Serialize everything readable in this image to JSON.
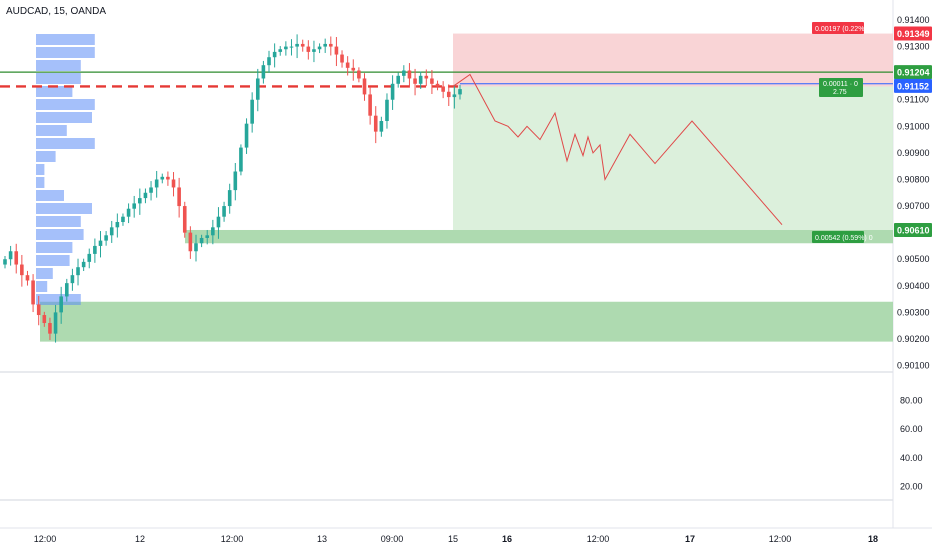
{
  "symbol_title": "AUDCAD, 15, OANDA",
  "colors": {
    "up": "#26a69a",
    "down": "#ef5350",
    "volume_profile": "#5b8cf5",
    "stop_zone": "#f7c9cc",
    "target_zone": "#d3ecd3",
    "support_zone": "#a5d6a7",
    "projection": "#e04848",
    "horizontal_line": "#2e8b2e",
    "stop_badge": "#f23645",
    "target_badge": "#2e9e41",
    "current_price_badge": "#2962ff"
  },
  "chart_data": [
    {
      "type": "candlestick",
      "title": "AUDCAD, 15, OANDA",
      "ylim": [
        0.901,
        0.914
      ],
      "y_tick_labels": [
        "0.91400",
        "0.91300",
        "0.91100",
        "0.91000",
        "0.90900",
        "0.90800",
        "0.90700",
        "0.90500",
        "0.90400",
        "0.90300",
        "0.90200",
        "0.90100"
      ],
      "x_tick_labels": [
        "12:00",
        "12",
        "12:00",
        "13",
        "09:00",
        "15",
        "16",
        "12:00",
        "17",
        "12:00",
        "18"
      ],
      "price_badges": [
        {
          "label": "0.91349",
          "value": 0.91349,
          "role": "stop"
        },
        {
          "label": "0.91204",
          "value": 0.91204,
          "role": "horizontal-line"
        },
        {
          "label": "0.91152",
          "value": 0.91152,
          "role": "current"
        },
        {
          "label": "0.90610",
          "value": 0.9061,
          "role": "target"
        }
      ],
      "position_labels": {
        "stop": "0.00197 (0.22%) 0",
        "entry": "0.00011 · 0",
        "ratio": "2.75",
        "target": "0.00542 (0.59%) 0"
      },
      "entry_price": 0.9115,
      "zones": [
        {
          "name": "stop",
          "from": 0.9115,
          "to": 0.91349
        },
        {
          "name": "target",
          "from": 0.9061,
          "to": 0.9115
        },
        {
          "name": "support-1",
          "from": 0.9056,
          "to": 0.9061
        },
        {
          "name": "support-2",
          "from": 0.9019,
          "to": 0.9034
        }
      ],
      "horizontal_line": 0.91204,
      "close_path": [
        0.905,
        0.9053,
        0.9048,
        0.9044,
        0.9042,
        0.9033,
        0.9029,
        0.9026,
        0.9022,
        0.903,
        0.9036,
        0.9041,
        0.9044,
        0.9047,
        0.9049,
        0.9052,
        0.9055,
        0.9057,
        0.9059,
        0.9062,
        0.9064,
        0.9066,
        0.9069,
        0.9071,
        0.9073,
        0.9075,
        0.9077,
        0.908,
        0.9081,
        0.908,
        0.9077,
        0.907,
        0.906,
        0.9053,
        0.9056,
        0.9058,
        0.9059,
        0.9062,
        0.9066,
        0.907,
        0.9076,
        0.9083,
        0.9092,
        0.9101,
        0.911,
        0.9118,
        0.9123,
        0.9126,
        0.9128,
        0.9129,
        0.913,
        0.913,
        0.9131,
        0.913,
        0.9128,
        0.9129,
        0.913,
        0.9131,
        0.913,
        0.9127,
        0.9124,
        0.9122,
        0.9121,
        0.9118,
        0.9112,
        0.9104,
        0.9098,
        0.9102,
        0.911,
        0.9116,
        0.9119,
        0.9121,
        0.9118,
        0.9116,
        0.9119,
        0.9118,
        0.9116,
        0.9115,
        0.9113,
        0.9111,
        0.9112,
        0.9114
      ],
      "projection_path": [
        0.9115,
        0.91195,
        0.9102,
        0.91,
        0.9096,
        0.91,
        0.9095,
        0.9105,
        0.9087,
        0.9097,
        0.9089,
        0.9096,
        0.909,
        0.9093,
        0.908,
        0.9097,
        0.9086,
        0.9102,
        0.9063
      ],
      "volume_profile": [
        42,
        42,
        32,
        32,
        26,
        42,
        40,
        22,
        42,
        14,
        6,
        6,
        20,
        40,
        32,
        34,
        26,
        24,
        12,
        8,
        32
      ],
      "oscillator": {
        "ylim": [
          0,
          100
        ],
        "tick_labels": [
          "80.00",
          "60.00",
          "40.00",
          "20.00"
        ]
      }
    }
  ]
}
